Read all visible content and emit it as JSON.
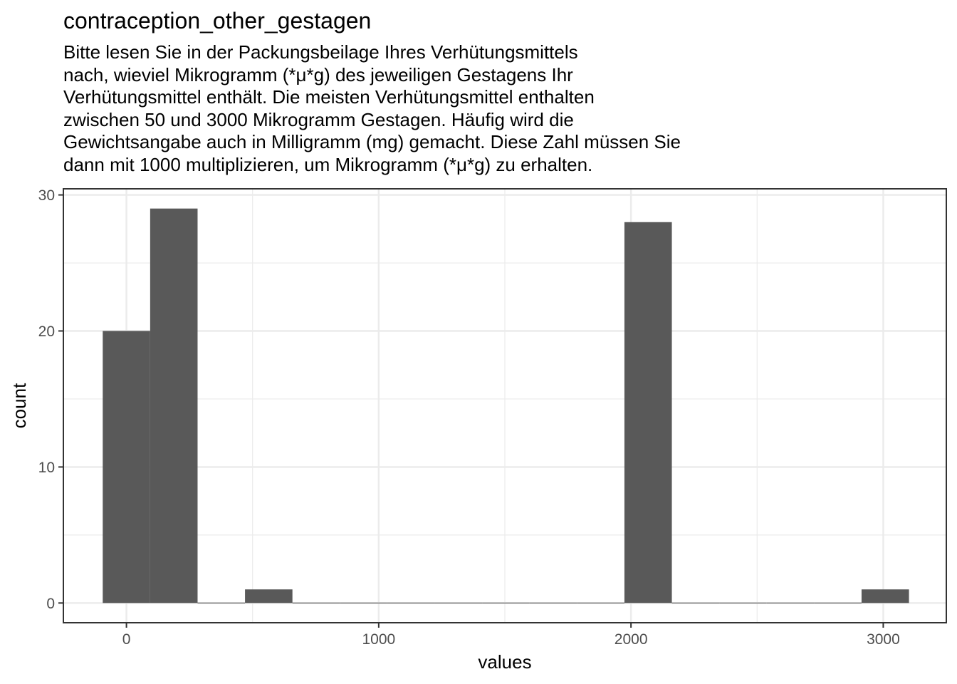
{
  "chart_data": {
    "type": "bar",
    "title": "contraception_other_gestagen",
    "subtitle_lines": [
      "Bitte lesen Sie in der Packungsbeilage Ihres Verhütungsmittels",
      "nach, wieviel Mikrogramm (*μ*g) des jeweiligen Gestagens Ihr",
      "Verhütungsmittel enthält. Die meisten Verhütungsmittel enthalten",
      "zwischen 50 und 3000 Mikrogramm Gestagen. Häufig wird die",
      "Gewichtsangabe auch in Milligramm (mg) gemacht. Diese Zahl müssen Sie",
      "dann mit 1000 multiplizieren, um Mikrogramm (*μ*g) zu erhalten."
    ],
    "xlabel": "values",
    "ylabel": "count",
    "xlim": [
      -250,
      3250
    ],
    "ylim": [
      -1.45,
      30.45
    ],
    "grid": true,
    "x_ticks": [
      0,
      1000,
      2000,
      3000
    ],
    "y_ticks": [
      0,
      10,
      20,
      30
    ],
    "bins": [
      {
        "x0": -94,
        "x1": 94,
        "count": 20
      },
      {
        "x0": 94,
        "x1": 282,
        "count": 29
      },
      {
        "x0": 282,
        "x1": 470,
        "count": 0
      },
      {
        "x0": 470,
        "x1": 658,
        "count": 1
      },
      {
        "x0": 658,
        "x1": 846,
        "count": 0
      },
      {
        "x0": 846,
        "x1": 1034,
        "count": 0
      },
      {
        "x0": 1034,
        "x1": 1222,
        "count": 0
      },
      {
        "x0": 1222,
        "x1": 1410,
        "count": 0
      },
      {
        "x0": 1410,
        "x1": 1598,
        "count": 0
      },
      {
        "x0": 1598,
        "x1": 1786,
        "count": 0
      },
      {
        "x0": 1786,
        "x1": 1974,
        "count": 0
      },
      {
        "x0": 1974,
        "x1": 2162,
        "count": 28
      },
      {
        "x0": 2162,
        "x1": 2350,
        "count": 0
      },
      {
        "x0": 2350,
        "x1": 2538,
        "count": 0
      },
      {
        "x0": 2538,
        "x1": 2726,
        "count": 0
      },
      {
        "x0": 2726,
        "x1": 2914,
        "count": 0
      },
      {
        "x0": 2914,
        "x1": 3102,
        "count": 1
      }
    ],
    "bar_color": "#595959",
    "grid_color": "#ebebeb",
    "frame_color": "#333333"
  }
}
